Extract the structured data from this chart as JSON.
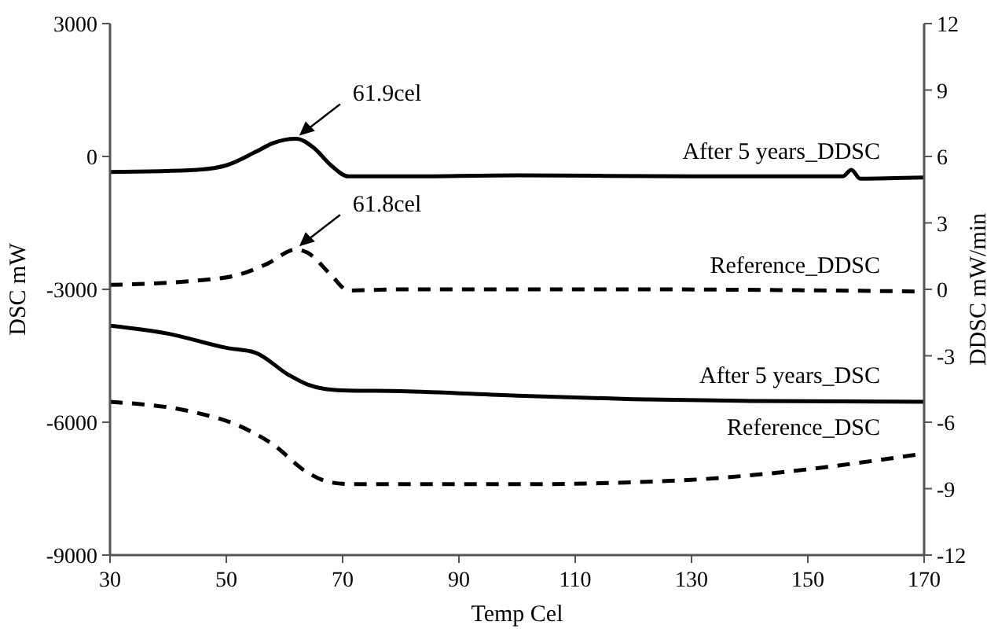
{
  "chart_data": {
    "type": "line",
    "xlabel": "Temp Cel",
    "ylabel": "DSC mW",
    "y2label": "DDSC mW/min",
    "xlim": [
      30,
      170
    ],
    "xticks": [
      30,
      50,
      70,
      90,
      110,
      130,
      150,
      170
    ],
    "ylim": [
      -9000,
      3000
    ],
    "yticks": [
      -9000,
      -6000,
      -3000,
      0,
      3000
    ],
    "y2lim": [
      -12,
      12
    ],
    "y2ticks": [
      -12,
      -9,
      -6,
      -3,
      0,
      3,
      6,
      9,
      12
    ],
    "series": [
      {
        "name": "After 5 years_DDSC",
        "color": "#000000",
        "axis": "y2",
        "line_style": "solid",
        "x": [
          30,
          45,
          50,
          55,
          58,
          62,
          65,
          68,
          71,
          80,
          100,
          130,
          156,
          157.5,
          159,
          170
        ],
        "values": [
          5.3,
          5.4,
          5.6,
          6.2,
          6.6,
          6.8,
          6.4,
          5.6,
          5.1,
          5.1,
          5.15,
          5.1,
          5.1,
          5.4,
          5.0,
          5.05
        ]
      },
      {
        "name": "Reference_DDSC",
        "color": "#000000",
        "axis": "y2",
        "line_style": "dashed",
        "x": [
          30,
          45,
          52,
          57,
          62,
          64,
          68,
          71,
          80,
          120,
          170
        ],
        "values": [
          0.2,
          0.4,
          0.65,
          1.15,
          1.8,
          1.65,
          0.65,
          -0.05,
          0,
          0,
          -0.1
        ]
      },
      {
        "name": "After 5 years_DSC",
        "color": "#000000",
        "line_style": "solid",
        "x": [
          30,
          40,
          50,
          55,
          60.7,
          64,
          67,
          70,
          80,
          100,
          120,
          140,
          170
        ],
        "values": [
          -3820,
          -4000,
          -4320,
          -4430,
          -4930,
          -5150,
          -5250,
          -5280,
          -5300,
          -5400,
          -5480,
          -5520,
          -5540
        ]
      },
      {
        "name": "Reference_DSC",
        "color": "#000000",
        "line_style": "dashed",
        "x": [
          30,
          45,
          52,
          58,
          64,
          68,
          72,
          100,
          130,
          140,
          170
        ],
        "values": [
          -5540,
          -5790,
          -6070,
          -6500,
          -7140,
          -7360,
          -7400,
          -7400,
          -7300,
          -7200,
          -6710
        ]
      }
    ],
    "annotations": [
      "61.9cel",
      "61.8cel"
    ]
  }
}
